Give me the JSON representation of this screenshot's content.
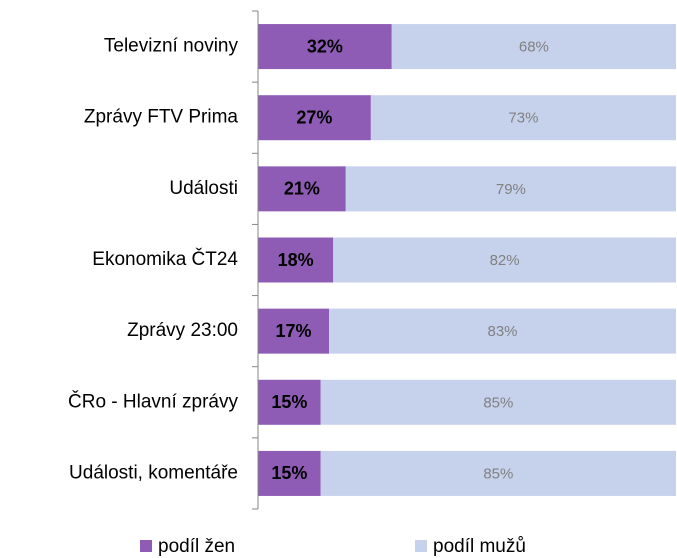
{
  "chart_data": {
    "type": "stacked-bar-horizontal",
    "categories": [
      "Televizní noviny",
      "Zprávy FTV Prima",
      "Události",
      "Ekonomika ČT24",
      "Zprávy 23:00",
      "ČRo - Hlavní zprávy",
      "Události, komentáře"
    ],
    "series": [
      {
        "name": "podíl žen",
        "color": "#8e5cb4",
        "values": [
          32,
          27,
          21,
          18,
          17,
          15,
          15
        ],
        "value_labels": [
          "32%",
          "27%",
          "21%",
          "18%",
          "17%",
          "15%",
          "15%"
        ]
      },
      {
        "name": "podíl mužů",
        "color": "#c6d2ec",
        "values": [
          68,
          73,
          79,
          82,
          83,
          85,
          85
        ],
        "value_labels": [
          "68%",
          "73%",
          "79%",
          "82%",
          "83%",
          "85%",
          "85%"
        ]
      }
    ],
    "xlim": [
      0,
      100
    ]
  }
}
